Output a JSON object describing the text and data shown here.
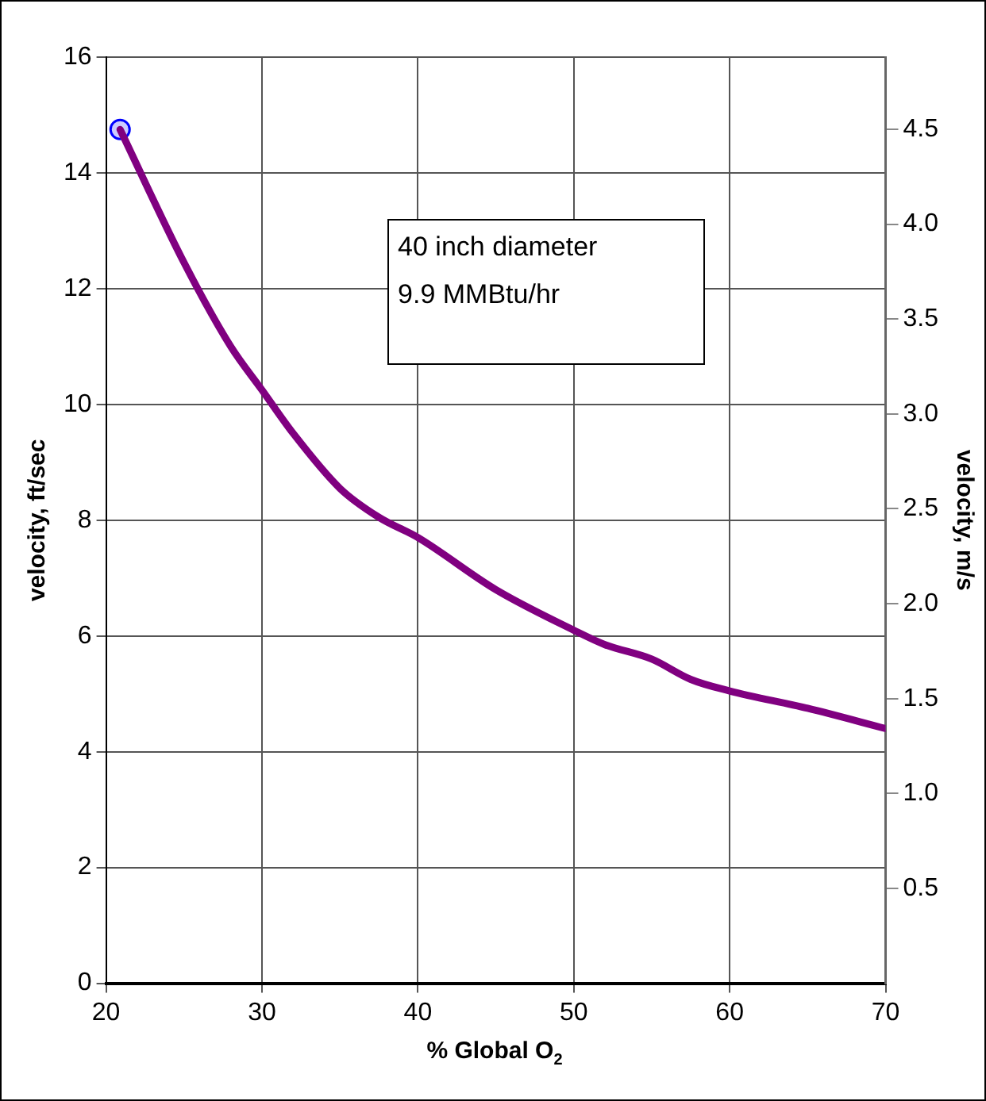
{
  "chart_data": {
    "type": "line",
    "xlabel": "% Global O$_{2}$",
    "ylabel": "velocity, ft/sec",
    "y2label": "velocity, m/s",
    "annotations": [
      "40 inch diameter\n9.9 MMBtu/hr"
    ],
    "series": [
      {
        "color": "#800080",
        "marker": "none",
        "x": [
          20.9,
          25,
          28,
          30,
          32,
          35,
          37.5,
          40,
          45,
          50,
          52,
          55,
          57.5,
          60,
          65,
          70
        ],
        "values": [
          14.75,
          12.45,
          11.0,
          10.25,
          9.5,
          8.55,
          8.05,
          7.7,
          6.8,
          6.1,
          5.85,
          5.6,
          5.25,
          5.05,
          4.75,
          4.4
        ]
      },
      {
        "type": "scatter",
        "color": "#ccccff",
        "marker": "circle",
        "x": [
          20.9
        ],
        "values": [
          14.75
        ]
      }
    ],
    "xlim": [
      20,
      70
    ],
    "xticks": [
      20,
      30,
      40,
      50,
      60,
      70
    ],
    "ylim": [
      0,
      16
    ],
    "yticks": [
      0,
      2,
      4,
      6,
      8,
      10,
      12,
      14,
      16
    ],
    "y2lim": [
      0,
      4.88
    ],
    "y2ticks": [
      0.5,
      {
        "value": 1,
        "label": "1.0"
      },
      1.5,
      {
        "value": 2,
        "label": "2.0"
      },
      2.5,
      {
        "value": 3,
        "label": "3.0"
      },
      3.5,
      {
        "value": 4,
        "label": "4.0"
      },
      4.5
    ],
    "grid": true,
    "legend": false
  }
}
